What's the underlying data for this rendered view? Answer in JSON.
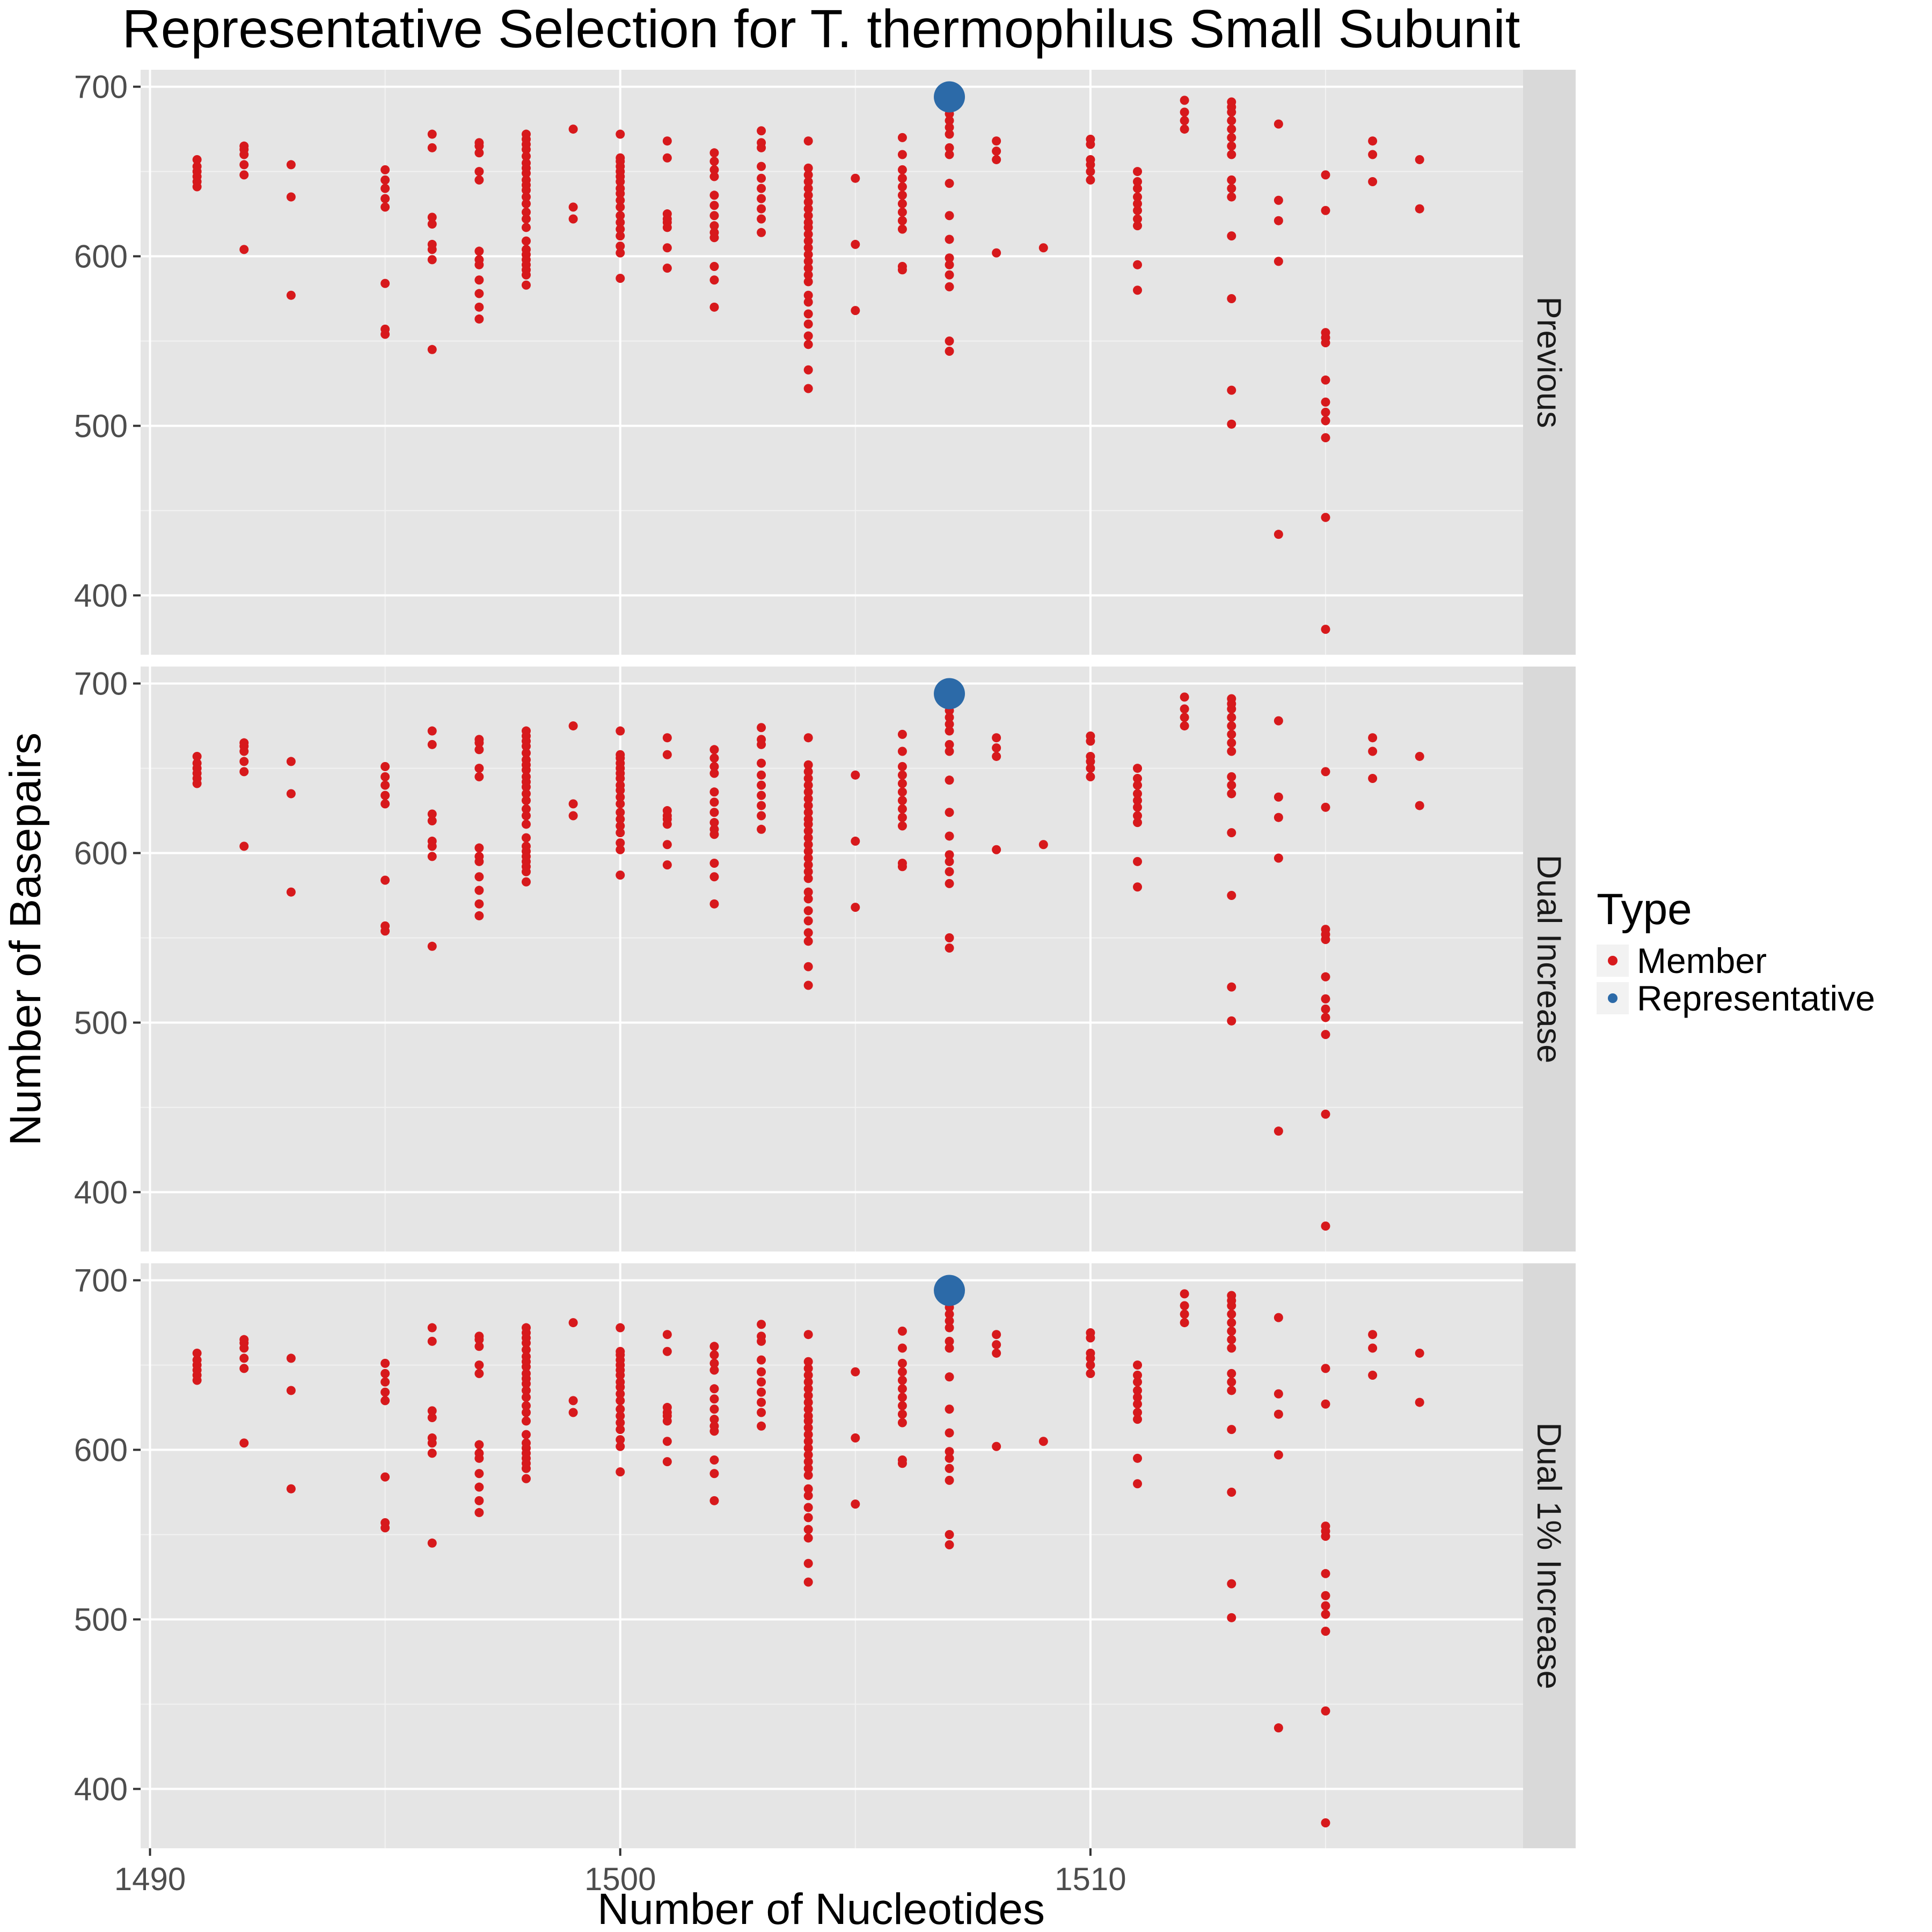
{
  "chart_data": {
    "type": "scatter",
    "title": "Representative Selection for T. thermophilus Small Subunit",
    "xlabel": "Number of Nucleotides",
    "ylabel": "Number of Basepairs",
    "xlim": [
      1489.8,
      1519.2
    ],
    "ylim": [
      365,
      710
    ],
    "x_ticks": [
      1490,
      1500,
      1510
    ],
    "y_ticks": [
      400,
      500,
      600,
      700
    ],
    "grid": true,
    "legend": {
      "title": "Type",
      "position": "right",
      "entries": [
        {
          "label": "Member",
          "color": "#d7191c"
        },
        {
          "label": "Representative",
          "color": "#2c6aa8"
        }
      ]
    },
    "facets": [
      "Previous",
      "Dual Increase",
      "Dual 1% Increase"
    ],
    "series": [
      {
        "name": "Member",
        "color": "#d7191c",
        "points": [
          [
            1491,
            641
          ],
          [
            1491,
            644
          ],
          [
            1491,
            647
          ],
          [
            1491,
            650
          ],
          [
            1491,
            653
          ],
          [
            1491,
            657
          ],
          [
            1492,
            604
          ],
          [
            1492,
            648
          ],
          [
            1492,
            654
          ],
          [
            1492,
            660
          ],
          [
            1492,
            663
          ],
          [
            1492,
            665
          ],
          [
            1493,
            577
          ],
          [
            1493,
            635
          ],
          [
            1493,
            654
          ],
          [
            1495,
            554
          ],
          [
            1495,
            557
          ],
          [
            1495,
            584
          ],
          [
            1495,
            629
          ],
          [
            1495,
            634
          ],
          [
            1495,
            640
          ],
          [
            1495,
            645
          ],
          [
            1495,
            651
          ],
          [
            1496,
            545
          ],
          [
            1496,
            598
          ],
          [
            1496,
            604
          ],
          [
            1496,
            607
          ],
          [
            1496,
            619
          ],
          [
            1496,
            623
          ],
          [
            1496,
            664
          ],
          [
            1496,
            672
          ],
          [
            1497,
            563
          ],
          [
            1497,
            570
          ],
          [
            1497,
            578
          ],
          [
            1497,
            586
          ],
          [
            1497,
            595
          ],
          [
            1497,
            598
          ],
          [
            1497,
            603
          ],
          [
            1497,
            645
          ],
          [
            1497,
            650
          ],
          [
            1497,
            661
          ],
          [
            1497,
            665
          ],
          [
            1497,
            667
          ],
          [
            1498,
            583
          ],
          [
            1498,
            589
          ],
          [
            1498,
            592
          ],
          [
            1498,
            595
          ],
          [
            1498,
            598
          ],
          [
            1498,
            601
          ],
          [
            1498,
            604
          ],
          [
            1498,
            609
          ],
          [
            1498,
            617
          ],
          [
            1498,
            622
          ],
          [
            1498,
            626
          ],
          [
            1498,
            631
          ],
          [
            1498,
            635
          ],
          [
            1498,
            639
          ],
          [
            1498,
            642
          ],
          [
            1498,
            645
          ],
          [
            1498,
            649
          ],
          [
            1498,
            652
          ],
          [
            1498,
            655
          ],
          [
            1498,
            659
          ],
          [
            1498,
            663
          ],
          [
            1498,
            666
          ],
          [
            1498,
            669
          ],
          [
            1498,
            672
          ],
          [
            1499,
            622
          ],
          [
            1499,
            629
          ],
          [
            1499,
            675
          ],
          [
            1500,
            587
          ],
          [
            1500,
            602
          ],
          [
            1500,
            606
          ],
          [
            1500,
            612
          ],
          [
            1500,
            616
          ],
          [
            1500,
            620
          ],
          [
            1500,
            624
          ],
          [
            1500,
            629
          ],
          [
            1500,
            633
          ],
          [
            1500,
            637
          ],
          [
            1500,
            640
          ],
          [
            1500,
            644
          ],
          [
            1500,
            647
          ],
          [
            1500,
            650
          ],
          [
            1500,
            653
          ],
          [
            1500,
            656
          ],
          [
            1500,
            658
          ],
          [
            1500,
            672
          ],
          [
            1501,
            593
          ],
          [
            1501,
            605
          ],
          [
            1501,
            617
          ],
          [
            1501,
            620
          ],
          [
            1501,
            622
          ],
          [
            1501,
            625
          ],
          [
            1501,
            658
          ],
          [
            1501,
            668
          ],
          [
            1502,
            570
          ],
          [
            1502,
            586
          ],
          [
            1502,
            594
          ],
          [
            1502,
            611
          ],
          [
            1502,
            614
          ],
          [
            1502,
            618
          ],
          [
            1502,
            624
          ],
          [
            1502,
            630
          ],
          [
            1502,
            636
          ],
          [
            1502,
            647
          ],
          [
            1502,
            651
          ],
          [
            1502,
            656
          ],
          [
            1502,
            661
          ],
          [
            1503,
            614
          ],
          [
            1503,
            622
          ],
          [
            1503,
            628
          ],
          [
            1503,
            634
          ],
          [
            1503,
            640
          ],
          [
            1503,
            646
          ],
          [
            1503,
            653
          ],
          [
            1503,
            664
          ],
          [
            1503,
            667
          ],
          [
            1503,
            674
          ],
          [
            1504,
            522
          ],
          [
            1504,
            533
          ],
          [
            1504,
            548
          ],
          [
            1504,
            553
          ],
          [
            1504,
            560
          ],
          [
            1504,
            566
          ],
          [
            1504,
            573
          ],
          [
            1504,
            577
          ],
          [
            1504,
            585
          ],
          [
            1504,
            589
          ],
          [
            1504,
            593
          ],
          [
            1504,
            597
          ],
          [
            1504,
            601
          ],
          [
            1504,
            605
          ],
          [
            1504,
            609
          ],
          [
            1504,
            613
          ],
          [
            1504,
            617
          ],
          [
            1504,
            620
          ],
          [
            1504,
            624
          ],
          [
            1504,
            628
          ],
          [
            1504,
            632
          ],
          [
            1504,
            636
          ],
          [
            1504,
            640
          ],
          [
            1504,
            644
          ],
          [
            1504,
            648
          ],
          [
            1504,
            652
          ],
          [
            1504,
            668
          ],
          [
            1505,
            568
          ],
          [
            1505,
            607
          ],
          [
            1505,
            646
          ],
          [
            1506,
            592
          ],
          [
            1506,
            594
          ],
          [
            1506,
            616
          ],
          [
            1506,
            621
          ],
          [
            1506,
            626
          ],
          [
            1506,
            631
          ],
          [
            1506,
            636
          ],
          [
            1506,
            641
          ],
          [
            1506,
            646
          ],
          [
            1506,
            651
          ],
          [
            1506,
            660
          ],
          [
            1506,
            670
          ],
          [
            1507,
            544
          ],
          [
            1507,
            550
          ],
          [
            1507,
            582
          ],
          [
            1507,
            589
          ],
          [
            1507,
            595
          ],
          [
            1507,
            599
          ],
          [
            1507,
            610
          ],
          [
            1507,
            624
          ],
          [
            1507,
            643
          ],
          [
            1507,
            660
          ],
          [
            1507,
            664
          ],
          [
            1507,
            672
          ],
          [
            1507,
            676
          ],
          [
            1507,
            680
          ],
          [
            1507,
            684
          ],
          [
            1507,
            688
          ],
          [
            1508,
            602
          ],
          [
            1508,
            657
          ],
          [
            1508,
            662
          ],
          [
            1508,
            668
          ],
          [
            1509,
            605
          ],
          [
            1510,
            645
          ],
          [
            1510,
            650
          ],
          [
            1510,
            654
          ],
          [
            1510,
            657
          ],
          [
            1510,
            666
          ],
          [
            1510,
            669
          ],
          [
            1511,
            580
          ],
          [
            1511,
            595
          ],
          [
            1511,
            618
          ],
          [
            1511,
            622
          ],
          [
            1511,
            627
          ],
          [
            1511,
            631
          ],
          [
            1511,
            635
          ],
          [
            1511,
            640
          ],
          [
            1511,
            644
          ],
          [
            1511,
            650
          ],
          [
            1512,
            675
          ],
          [
            1512,
            680
          ],
          [
            1512,
            685
          ],
          [
            1512,
            692
          ],
          [
            1513,
            501
          ],
          [
            1513,
            521
          ],
          [
            1513,
            575
          ],
          [
            1513,
            612
          ],
          [
            1513,
            635
          ],
          [
            1513,
            640
          ],
          [
            1513,
            645
          ],
          [
            1513,
            660
          ],
          [
            1513,
            665
          ],
          [
            1513,
            670
          ],
          [
            1513,
            675
          ],
          [
            1513,
            680
          ],
          [
            1513,
            685
          ],
          [
            1513,
            688
          ],
          [
            1513,
            691
          ],
          [
            1514,
            436
          ],
          [
            1514,
            597
          ],
          [
            1514,
            621
          ],
          [
            1514,
            633
          ],
          [
            1514,
            678
          ],
          [
            1515,
            380
          ],
          [
            1515,
            446
          ],
          [
            1515,
            493
          ],
          [
            1515,
            503
          ],
          [
            1515,
            508
          ],
          [
            1515,
            514
          ],
          [
            1515,
            527
          ],
          [
            1515,
            549
          ],
          [
            1515,
            552
          ],
          [
            1515,
            555
          ],
          [
            1515,
            627
          ],
          [
            1515,
            648
          ],
          [
            1516,
            644
          ],
          [
            1516,
            660
          ],
          [
            1516,
            668
          ],
          [
            1517,
            628
          ],
          [
            1517,
            657
          ]
        ]
      },
      {
        "name": "Representative",
        "color": "#2c6aa8",
        "points": [
          [
            1507,
            694
          ]
        ]
      }
    ]
  }
}
